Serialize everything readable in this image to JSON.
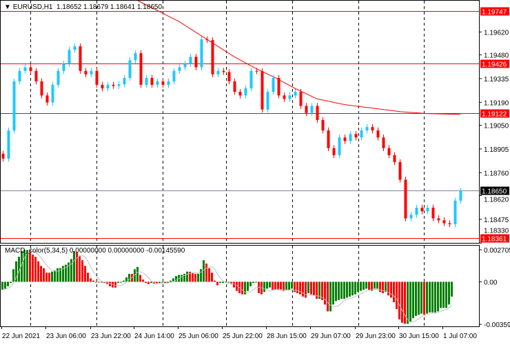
{
  "header": {
    "menu_icon": "triangle-down-icon",
    "symbol": "EURUSD,H1",
    "open": "1.18652",
    "high": "1.18679",
    "low": "1.18641",
    "close": "1.18650"
  },
  "macd": {
    "title": "MACD_color(5,34,5) 0.00000000 0.00000000 -0.00145590",
    "axis_labels": [
      "0.0027051",
      "0.00",
      "-0.003592"
    ],
    "axis_values": [
      0.0027051,
      0,
      -0.003592
    ],
    "colors": {
      "up": "#008000",
      "down": "#ff0000",
      "signal": "#c0c0c0"
    },
    "histogram": [
      -0.00067,
      -0.00058,
      -0.00038,
      -0.0001,
      0.00106,
      0.00173,
      0.00211,
      0.00259,
      0.00269,
      0.00269,
      0.00268,
      0.0023,
      0.00211,
      0.00173,
      0.00134,
      0.00115,
      0.00077,
      0.00076,
      0.00086,
      0.00096,
      0.00115,
      0.00116,
      0.00134,
      0.00144,
      0.00163,
      0.00192,
      0.00259,
      0.0025,
      0.00221,
      0.00182,
      0.00134,
      0.00077,
      0.00029,
      0.0001,
      -6e-05,
      -4e-05,
      -6e-05,
      -0.0001,
      -0.00019,
      -0.00038,
      -0.00048,
      -0.00049,
      -0.0001,
      -6e-05,
      0.0001,
      0.00038,
      0.00067,
      0.00066,
      0.00106,
      0.00125,
      0.00058,
      0.00019,
      -0.0001,
      -0.00019,
      -0.0001,
      -0.00015,
      -0.00016,
      -0.0001,
      -6e-05,
      -0.0001,
      -0.0001,
      0.0001,
      0.00029,
      0.00048,
      0.00058,
      0.00058,
      0.00067,
      0.00086,
      0.00085,
      0.00077,
      0.00067,
      0.00068,
      0.00106,
      0.00182,
      0.00154,
      0.00115,
      0.00077,
      0.0001,
      -0.00029,
      -0.0001,
      -0.0001,
      -6e-05,
      -6e-05,
      -0.00019,
      -0.00048,
      -0.00077,
      -0.00096,
      -0.00106,
      -0.00106,
      -0.00077,
      -0.00038,
      -0.0001,
      -6e-05,
      -0.00096,
      -0.00106,
      -0.00086,
      -0.00058,
      -0.00048,
      -0.00067,
      -0.00068,
      -0.00069,
      -0.0007,
      -0.00077,
      -0.00067,
      -0.00067,
      -0.00058,
      -0.00086,
      -0.00096,
      -0.00106,
      -0.00125,
      -0.00134,
      -0.00096,
      -0.00106,
      -0.00115,
      -0.00144,
      -0.00144,
      -0.00154,
      -0.00192,
      -0.0025,
      -0.0025,
      -0.00192,
      -0.00163,
      -0.00154,
      -0.00144,
      -0.00144,
      -0.00134,
      -0.00125,
      -0.00115,
      -0.00106,
      -0.00086,
      -0.00077,
      -0.00067,
      -0.00058,
      -0.00067,
      -0.00077,
      -0.00058,
      -0.00058,
      -0.00086,
      -0.00096,
      -0.00086,
      -0.00115,
      -0.00134,
      -0.00173,
      -0.0023,
      -0.00317,
      -0.00346,
      -0.00355,
      -0.00355,
      -0.00336,
      -0.00307,
      -0.00288,
      -0.00278,
      -0.00269,
      -0.00278,
      -0.00269,
      -0.00259,
      -0.00259,
      -0.00259,
      -0.0025,
      -0.00221,
      -0.00221,
      -0.00221,
      -0.00192,
      -0.00125
    ]
  },
  "price_axis": {
    "ticks": [
      "1.19620",
      "1.19480",
      "1.19335",
      "1.19190",
      "1.19050",
      "1.18905",
      "1.18760",
      "1.18620",
      "1.18475",
      "1.18330"
    ],
    "range": [
      1.18331,
      1.19811
    ]
  },
  "levels": [
    {
      "price": 1.19747,
      "label": "1.19747",
      "color": "#ff0000"
    },
    {
      "price": 1.19426,
      "label": "1.19426",
      "color": "#ff0000"
    },
    {
      "price": 1.19122,
      "label": "1.19122",
      "color": "#ff0000"
    },
    {
      "price": 1.18361,
      "label": "1.18361",
      "color": "#ff0000"
    }
  ],
  "current_price": {
    "price": 1.1865,
    "label": "1.18650",
    "line_color": "#778899",
    "label_bg": "#000000"
  },
  "time_axis": [
    "22 Jun 2021",
    "23 Jun 06:00",
    "23 Jun 22:00",
    "24 Jun 14:00",
    "25 Jun 06:00",
    "25 Jun 22:00",
    "28 Jun 15:00",
    "29 Jun 07:00",
    "29 Jun 23:00",
    "30 Jun 15:00",
    "1 Jul 07:00"
  ],
  "candles": {
    "colors": {
      "bull": "#1ec8ff",
      "bear": "#ff0000"
    },
    "closes": [
      1.18846,
      1.19018,
      1.19318,
      1.19382,
      1.19404,
      1.19382,
      1.19318,
      1.19232,
      1.19189,
      1.19297,
      1.19382,
      1.19425,
      1.19511,
      1.19532,
      1.19382,
      1.19361,
      1.19382,
      1.19297,
      1.19275,
      1.19297,
      1.1929,
      1.193,
      1.19339,
      1.19447,
      1.1949,
      1.19297,
      1.19339,
      1.19297,
      1.19318,
      1.19297,
      1.19318,
      1.19382,
      1.19404,
      1.19425,
      1.19468,
      1.19404,
      1.19575,
      1.1957,
      1.19361,
      1.19382,
      1.19375,
      1.19318,
      1.19254,
      1.19232,
      1.19275,
      1.19382,
      1.1938,
      1.19146,
      1.19254,
      1.19339,
      1.19232,
      1.19211,
      1.19232,
      1.19254,
      1.19168,
      1.19125,
      1.19168,
      1.19082,
      1.19018,
      1.1891,
      1.18867,
      1.18975,
      1.18953,
      1.18996,
      1.18975,
      1.19018,
      1.19039,
      1.19018,
      1.18975,
      1.1891,
      1.18867,
      1.18825,
      1.18717,
      1.18481,
      1.18503,
      1.18546,
      1.18524,
      1.18546,
      1.18481,
      1.18469,
      1.18451,
      1.18445,
      1.18589,
      1.1865
    ]
  },
  "moving_average": {
    "color": "#ff0000",
    "points": [
      [
        24.5,
        1.19811
      ],
      [
        32,
        1.19683
      ],
      [
        37,
        1.19575
      ],
      [
        42,
        1.19468
      ],
      [
        45.5,
        1.19404
      ],
      [
        49.5,
        1.19339
      ],
      [
        53,
        1.19275
      ],
      [
        57,
        1.19211
      ],
      [
        62,
        1.19176
      ],
      [
        67,
        1.19155
      ],
      [
        72,
        1.19133
      ],
      [
        77,
        1.19121
      ],
      [
        83,
        1.19116
      ]
    ]
  }
}
